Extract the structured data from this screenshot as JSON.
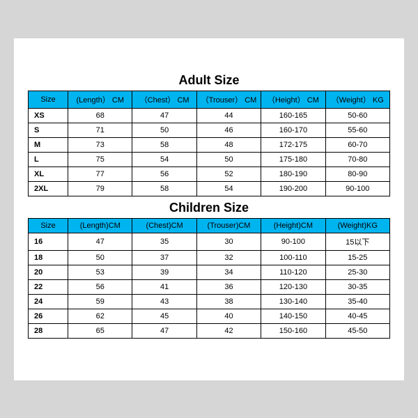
{
  "header_bg": "#00b4f0",
  "adult": {
    "title": "Adult Size",
    "columns": [
      "Size",
      "(Length） CM",
      "（Chest） CM",
      "（Trouser） CM",
      "（Height） CM",
      "（Weight） KG"
    ],
    "rows": [
      [
        "XS",
        "68",
        "47",
        "44",
        "160-165",
        "50-60"
      ],
      [
        "S",
        "71",
        "50",
        "46",
        "160-170",
        "55-60"
      ],
      [
        "M",
        "73",
        "58",
        "48",
        "172-175",
        "60-70"
      ],
      [
        "L",
        "75",
        "54",
        "50",
        "175-180",
        "70-80"
      ],
      [
        "XL",
        "77",
        "56",
        "52",
        "180-190",
        "80-90"
      ],
      [
        "2XL",
        "79",
        "58",
        "54",
        "190-200",
        "90-100"
      ]
    ]
  },
  "children": {
    "title": "Children Size",
    "columns": [
      "Size",
      "(Length)CM",
      "(Chest)CM",
      "(Trouser)CM",
      "(Height)CM",
      "(Weight)KG"
    ],
    "rows": [
      [
        "16",
        "47",
        "35",
        "30",
        "90-100",
        "15以下"
      ],
      [
        "18",
        "50",
        "37",
        "32",
        "100-110",
        "15-25"
      ],
      [
        "20",
        "53",
        "39",
        "34",
        "110-120",
        "25-30"
      ],
      [
        "22",
        "56",
        "41",
        "36",
        "120-130",
        "30-35"
      ],
      [
        "24",
        "59",
        "43",
        "38",
        "130-140",
        "35-40"
      ],
      [
        "26",
        "62",
        "45",
        "40",
        "140-150",
        "40-45"
      ],
      [
        "28",
        "65",
        "47",
        "42",
        "150-160",
        "45-50"
      ]
    ]
  }
}
